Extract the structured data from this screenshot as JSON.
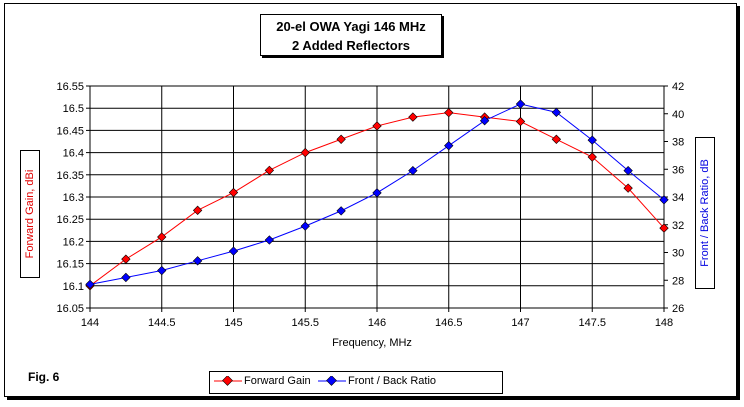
{
  "chart_data": {
    "type": "line",
    "title": [
      "20-el OWA Yagi 146 MHz",
      "2 Added Reflectors"
    ],
    "xlabel": "Frequency, MHz",
    "ylabel_left": "Forward Gain, dBi",
    "ylabel_right": "Front / Back Ratio, dB",
    "xlim": [
      144,
      148
    ],
    "ylim_left": [
      16.05,
      16.55
    ],
    "ylim_right": [
      26,
      42
    ],
    "x_ticks": [
      "144",
      "144.5",
      "145",
      "145.5",
      "146",
      "146.5",
      "147",
      "147.5",
      "148"
    ],
    "y_left_ticks": [
      "16.05",
      "16.1",
      "16.15",
      "16.2",
      "16.25",
      "16.3",
      "16.35",
      "16.4",
      "16.45",
      "16.5",
      "16.55"
    ],
    "y_right_ticks": [
      "26",
      "28",
      "30",
      "32",
      "34",
      "36",
      "38",
      "40",
      "42"
    ],
    "grid": true,
    "legend_position": "bottom",
    "x": [
      144,
      144.25,
      144.5,
      144.75,
      145,
      145.25,
      145.5,
      145.75,
      146,
      146.25,
      146.5,
      146.75,
      147,
      147.25,
      147.5,
      147.75,
      148
    ],
    "series": [
      {
        "name": "Forward Gain",
        "axis": "left",
        "color": "#ff0000",
        "values": [
          16.1,
          16.16,
          16.21,
          16.27,
          16.31,
          16.36,
          16.4,
          16.43,
          16.46,
          16.48,
          16.49,
          16.48,
          16.47,
          16.43,
          16.39,
          16.32,
          16.23
        ]
      },
      {
        "name": "Front / Back Ratio",
        "axis": "right",
        "color": "#0000ff",
        "values": [
          27.7,
          28.2,
          28.7,
          29.4,
          30.1,
          30.9,
          31.9,
          33.0,
          34.3,
          35.9,
          37.7,
          39.5,
          40.7,
          40.1,
          38.1,
          35.9,
          33.8
        ]
      }
    ]
  },
  "figure_label": "Fig. 6"
}
